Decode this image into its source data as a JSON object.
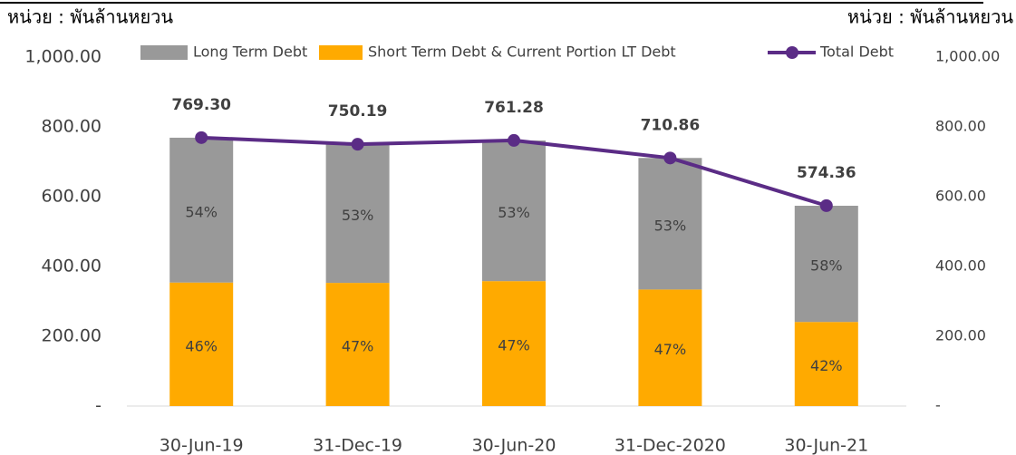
{
  "chart_data": {
    "type": "bar",
    "y_unit": "หน่วย : พันล้านหยวน",
    "y2_unit": "หน่วย : พันล้านหยวน",
    "categories": [
      "30-Jun-19",
      "31-Dec-19",
      "30-Jun-20",
      "31-Dec-2020",
      "30-Jun-21"
    ],
    "stacked": true,
    "series": [
      {
        "name": "Short Term Debt & Current Portion LT Debt",
        "color": "#ffaa00",
        "values": [
          354,
          353,
          358,
          334,
          241
        ],
        "share_labels": [
          "46%",
          "47%",
          "47%",
          "47%",
          "42%"
        ]
      },
      {
        "name": "Long Term Debt",
        "color": "#999999",
        "values": [
          415,
          397,
          403,
          377,
          333
        ],
        "share_labels": [
          "54%",
          "53%",
          "53%",
          "53%",
          "58%"
        ]
      },
      {
        "name": "Total Debt",
        "type": "line",
        "axis": "y2",
        "color": "#5b2c86",
        "values": [
          769.3,
          750.19,
          761.28,
          710.86,
          574.36
        ],
        "value_labels": [
          "769.30",
          "750.19",
          "761.28",
          "710.86",
          "574.36"
        ]
      }
    ],
    "legend_order": [
      1,
      0,
      2
    ],
    "ylim": [
      0,
      1000
    ],
    "yticks": [
      {
        "value": 0,
        "label": "-"
      },
      {
        "value": 200,
        "label": "200.00"
      },
      {
        "value": 400,
        "label": "400.00"
      },
      {
        "value": 600,
        "label": "600.00"
      },
      {
        "value": 800,
        "label": "800.00"
      },
      {
        "value": 1000,
        "label": "1,000.00"
      }
    ],
    "y2lim": [
      0,
      1000
    ],
    "y2ticks": [
      {
        "value": 0,
        "label": "-"
      },
      {
        "value": 200,
        "label": "200.00"
      },
      {
        "value": 400,
        "label": "400.00"
      },
      {
        "value": 600,
        "label": "600.00"
      },
      {
        "value": 800,
        "label": "800.00"
      },
      {
        "value": 1000,
        "label": "1,000.00"
      }
    ],
    "legend": "top"
  }
}
